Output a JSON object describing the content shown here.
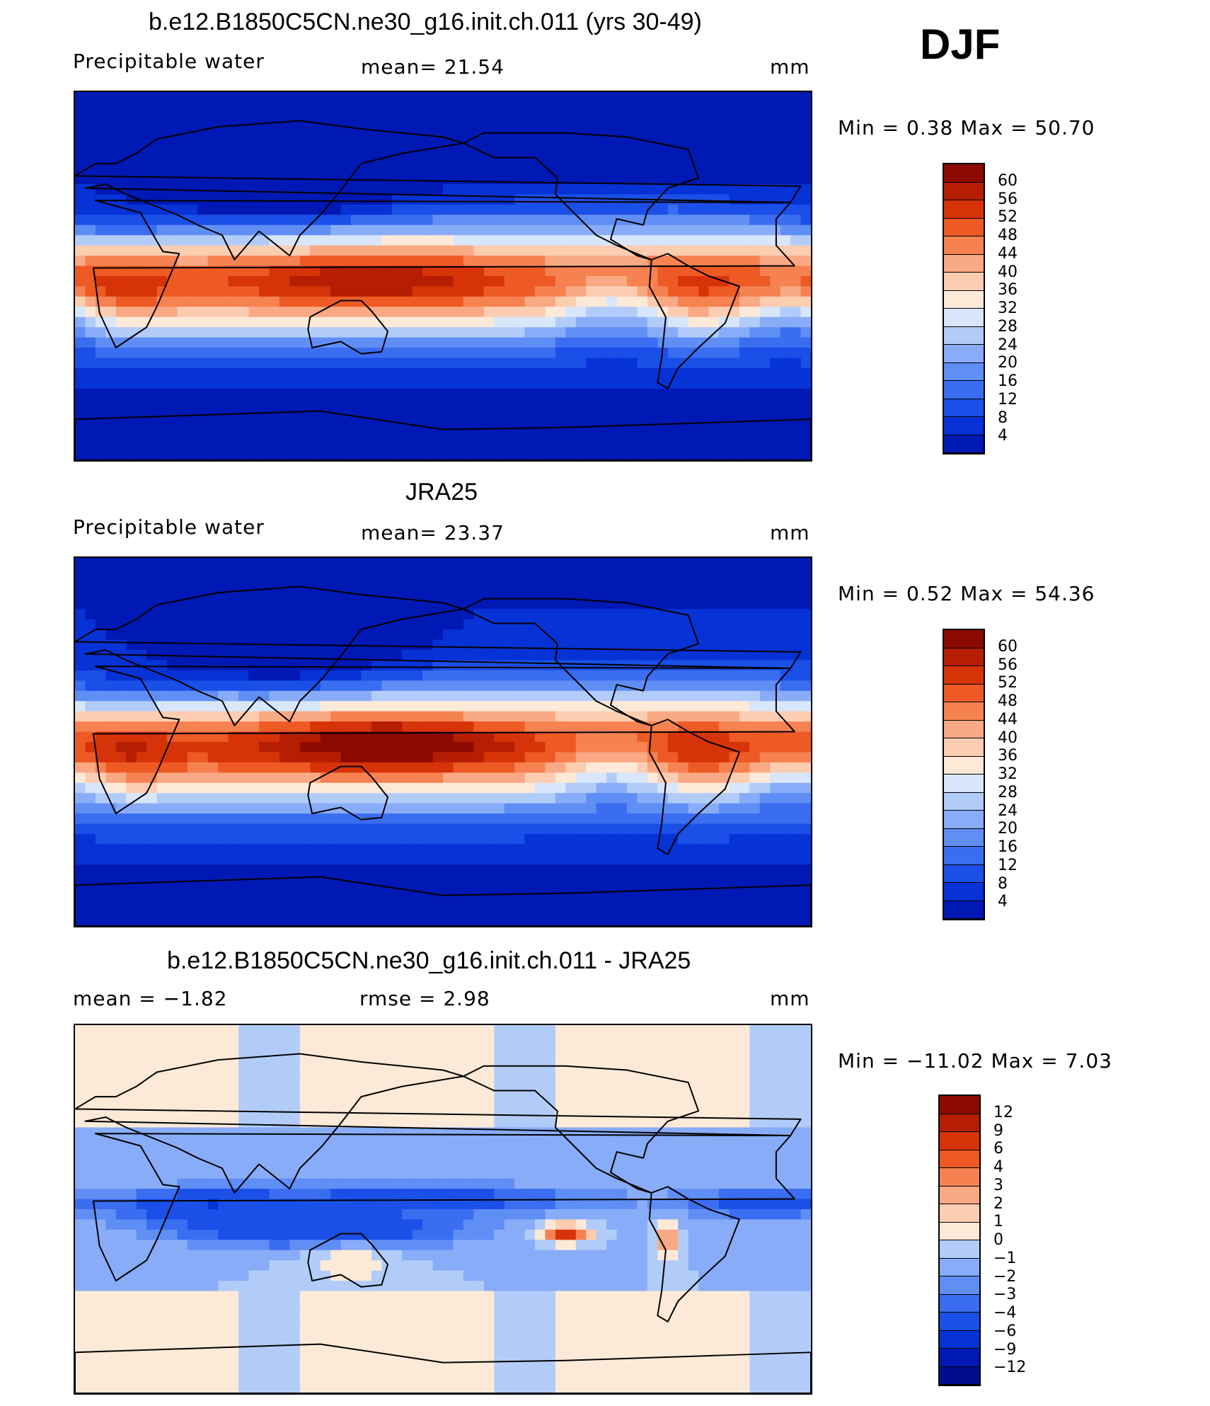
{
  "season": "DJF",
  "panels": [
    {
      "title": "b.e12.B1850C5CN.ne30_g16.init.ch.011 (yrs 30-49)",
      "left_label": "Precipitable  water",
      "center_label": "mean=   21.54",
      "right_label": "mm",
      "minmax": "Min  =     0.38  Max  =    50.70",
      "colorbar_labels": [
        "60",
        "56",
        "52",
        "48",
        "44",
        "40",
        "36",
        "32",
        "28",
        "24",
        "20",
        "16",
        "12",
        "8",
        "4"
      ],
      "field": "model",
      "levels": [
        4,
        8,
        12,
        16,
        20,
        24,
        28,
        32,
        36,
        40,
        44,
        48,
        52,
        56,
        60
      ]
    },
    {
      "title": "JRA25",
      "left_label": "Precipitable  water",
      "center_label": "mean=   23.37",
      "right_label": "mm",
      "minmax": "Min  =     0.52  Max  =    54.36",
      "colorbar_labels": [
        "60",
        "56",
        "52",
        "48",
        "44",
        "40",
        "36",
        "32",
        "28",
        "24",
        "20",
        "16",
        "12",
        "8",
        "4"
      ],
      "field": "obs",
      "levels": [
        4,
        8,
        12,
        16,
        20,
        24,
        28,
        32,
        36,
        40,
        44,
        48,
        52,
        56,
        60
      ]
    },
    {
      "title": "b.e12.B1850C5CN.ne30_g16.init.ch.011 - JRA25",
      "left_label": "mean  =    −1.82",
      "center_label": "rmse  =     2.98",
      "right_label": "mm",
      "minmax": "Min  =  −11.02  Max  =     7.03",
      "colorbar_labels": [
        "12",
        "9",
        "6",
        "4",
        "3",
        "2",
        "1",
        "0",
        "−1",
        "−2",
        "−3",
        "−4",
        "−6",
        "−9",
        "−12"
      ],
      "field": "diff",
      "levels": [
        -12,
        -9,
        -6,
        -4,
        -3,
        -2,
        -1,
        0,
        1,
        2,
        3,
        4,
        6,
        9,
        12
      ]
    }
  ],
  "colors": {
    "palette": [
      "#000e8c",
      "#0019b4",
      "#0632d6",
      "#1a4fe8",
      "#3a6df0",
      "#5f8ef5",
      "#88acf7",
      "#b2ccf9",
      "#d8e6fb",
      "#fde9d8",
      "#fccdb1",
      "#f9a983",
      "#f68252",
      "#ee5a24",
      "#d73309",
      "#b51e03",
      "#8c0a00"
    ]
  }
}
